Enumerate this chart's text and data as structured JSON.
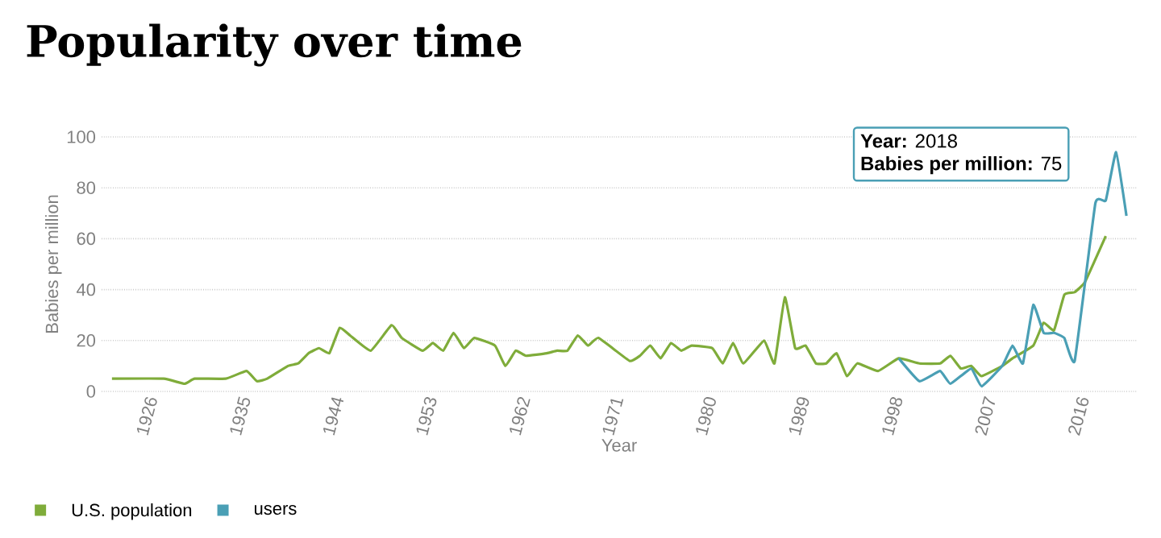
{
  "chart_data": {
    "type": "line",
    "title": "Popularity over time",
    "xlabel": "Year",
    "ylabel": "Babies per million",
    "annotations": [
      "**Year:** 2018",
      "**Babies per million:** 75"
    ],
    "series": [
      {
        "name": "U.S. population",
        "color": "#7fac3a",
        "x": [
          1922,
          1927,
          1929,
          1930,
          1933,
          1935,
          1936,
          1937,
          1939,
          1940,
          1941,
          1942,
          1943,
          1944,
          1945,
          1947,
          1949,
          1950,
          1952,
          1953,
          1954,
          1955,
          1956,
          1957,
          1959,
          1960,
          1961,
          1962,
          1964,
          1965,
          1966,
          1967,
          1968,
          1969,
          1972,
          1973,
          1974,
          1975,
          1976,
          1977,
          1978,
          1980,
          1981,
          1982,
          1983,
          1985,
          1986,
          1987,
          1988,
          1989,
          1990,
          1991,
          1992,
          1993,
          1994,
          1996,
          1998,
          2000,
          2002,
          2003,
          2004,
          2005,
          2006,
          2008,
          2009,
          2011,
          2012,
          2013,
          2014,
          2015,
          2016,
          2018
        ],
        "values": [
          5,
          5,
          3,
          5,
          5,
          8,
          4,
          5,
          10,
          11,
          15,
          17,
          15,
          25,
          22,
          16,
          26,
          21,
          16,
          19,
          16,
          23,
          17,
          21,
          18,
          10,
          16,
          14,
          15,
          16,
          16,
          22,
          18,
          21,
          12,
          14,
          18,
          13,
          19,
          16,
          18,
          17,
          11,
          19,
          11,
          20,
          11,
          37,
          17,
          18,
          11,
          11,
          15,
          6,
          11,
          8,
          13,
          11,
          11,
          14,
          9,
          10,
          6,
          10,
          13,
          18,
          27,
          24,
          38,
          39,
          43,
          61
        ]
      },
      {
        "name": "users",
        "color": "#4a9fb5",
        "x": [
          1998,
          2000,
          2002,
          2003,
          2005,
          2006,
          2008,
          2009,
          2010,
          2011,
          2012,
          2013,
          2014,
          2015,
          2017,
          2018,
          2019,
          2020
        ],
        "values": [
          13,
          4,
          8,
          3,
          9,
          2,
          10,
          18,
          11,
          34,
          23,
          23,
          21,
          12,
          74,
          75,
          94,
          69
        ]
      }
    ],
    "xlim": [
      1921,
      2021
    ],
    "ylim": [
      0,
      100
    ],
    "xticks": [
      1926,
      1935,
      1944,
      1953,
      1962,
      1971,
      1980,
      1989,
      1998,
      2007,
      2016
    ],
    "yticks": [
      0,
      20,
      40,
      60,
      80,
      100
    ],
    "grid": "y",
    "legend": "bottom left",
    "marker": "none",
    "line_style": "solid"
  }
}
